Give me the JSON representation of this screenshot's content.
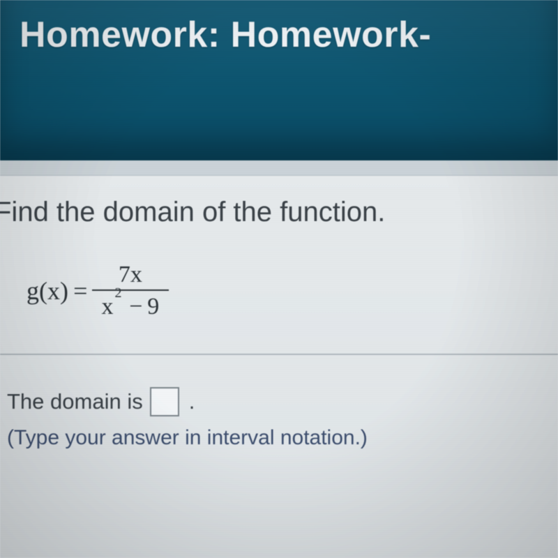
{
  "header": {
    "prefix": "Homework: ",
    "title_bold": "Homework-"
  },
  "problem": {
    "prompt": "Find the domain of the function.",
    "lhs": "g(x) =",
    "numerator": "7x",
    "denom_base": "x",
    "denom_exp": "2",
    "denom_rest": " − 9"
  },
  "answer": {
    "lead": "The domain is",
    "period": ".",
    "hint": "(Type your answer in interval notation.)"
  },
  "colors": {
    "header_bg": "#0d5570",
    "header_text": "#f0f4f7",
    "body_bg": "#e6eaec",
    "text": "#3a4147",
    "hint_text": "#3d4e6e",
    "divider": "#b0b8be",
    "input_border": "#7a8389"
  },
  "typography": {
    "header_fontsize_pt": 40,
    "prompt_fontsize_pt": 30,
    "equation_fontsize_pt": 27,
    "answer_fontsize_pt": 23
  }
}
